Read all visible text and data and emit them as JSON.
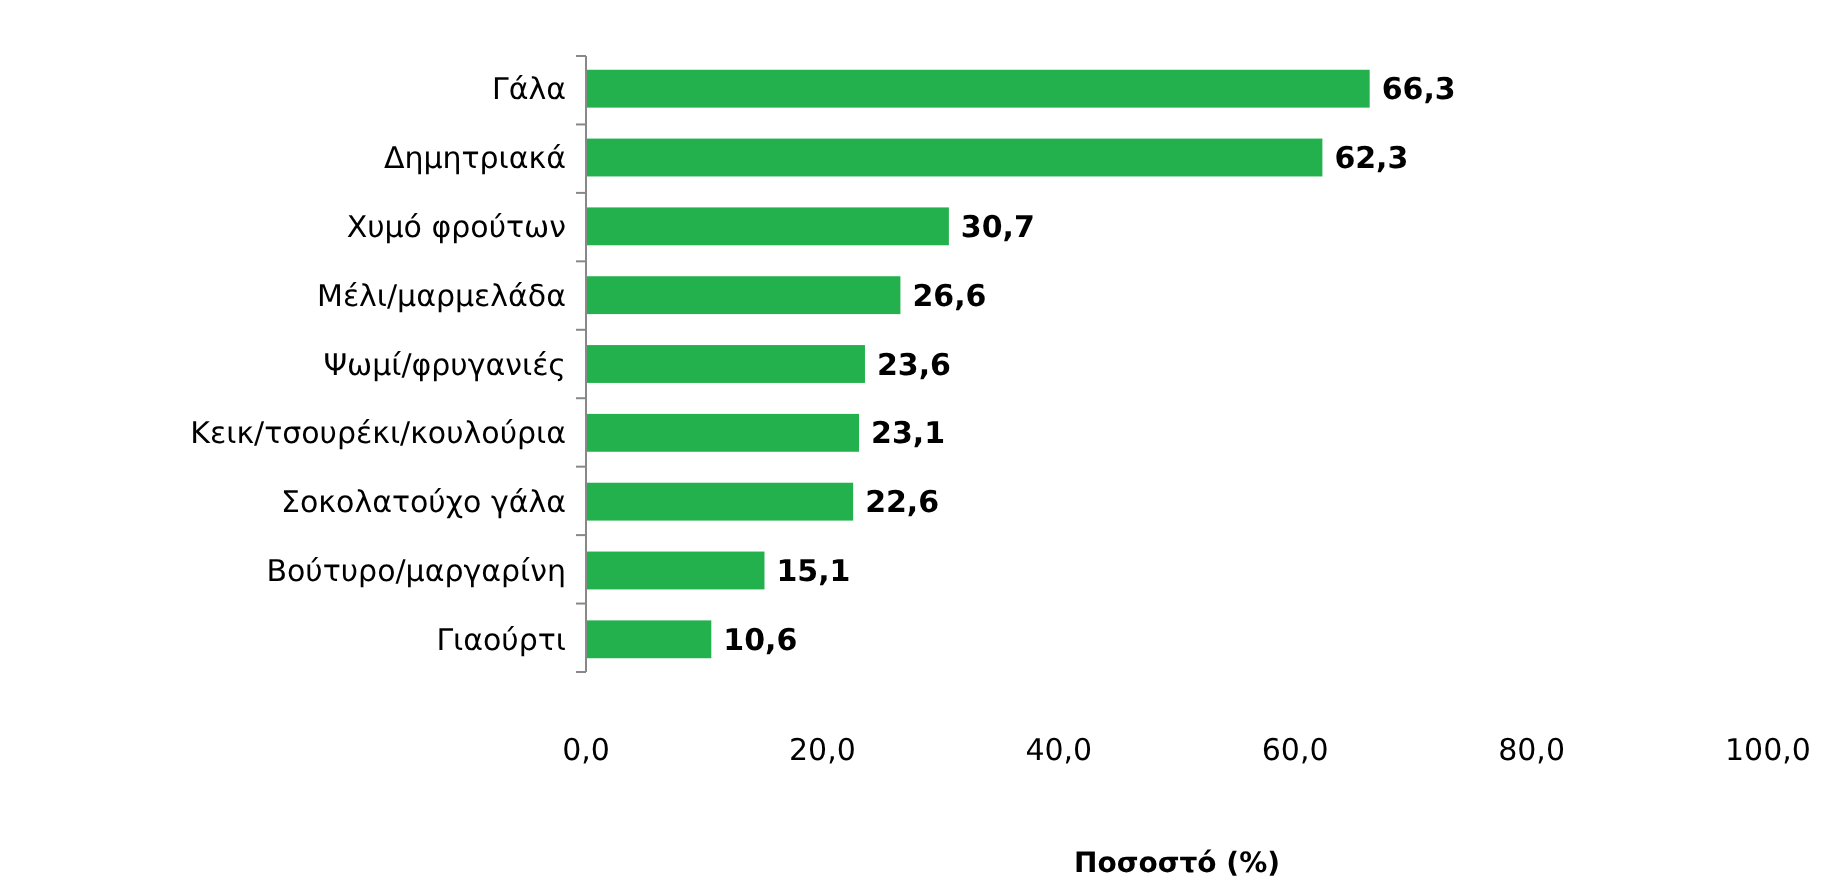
{
  "chart_data": {
    "type": "bar",
    "orientation": "horizontal",
    "xlabel": "Ποσοστό (%)",
    "categories": [
      "Γάλα",
      "Δημητριακά",
      "Χυμό φρούτων",
      "Μέλι/μαρμελάδα",
      "Ψωμί/φρυγανιές",
      "Κεικ/τσουρέκι/κουλούρια",
      "Σοκολατούχο γάλα",
      "Βούτυρο/μαργαρίνη",
      "Γιαούρτι"
    ],
    "values": [
      66.3,
      62.3,
      30.7,
      26.6,
      23.6,
      23.1,
      22.6,
      15.1,
      10.6
    ],
    "value_labels": [
      "66,3",
      "62,3",
      "30,7",
      "26,6",
      "23,6",
      "23,1",
      "22,6",
      "15,1",
      "10,6"
    ],
    "color": "#22b14c",
    "xlim": [
      0,
      100
    ],
    "xticks": [
      {
        "value": 0,
        "label": "0,0"
      },
      {
        "value": 20,
        "label": "20,0"
      },
      {
        "value": 40,
        "label": "40,0"
      },
      {
        "value": 60,
        "label": "60,0"
      },
      {
        "value": 80,
        "label": "80,0"
      },
      {
        "value": 100,
        "label": "100,0"
      }
    ],
    "grid": false
  }
}
